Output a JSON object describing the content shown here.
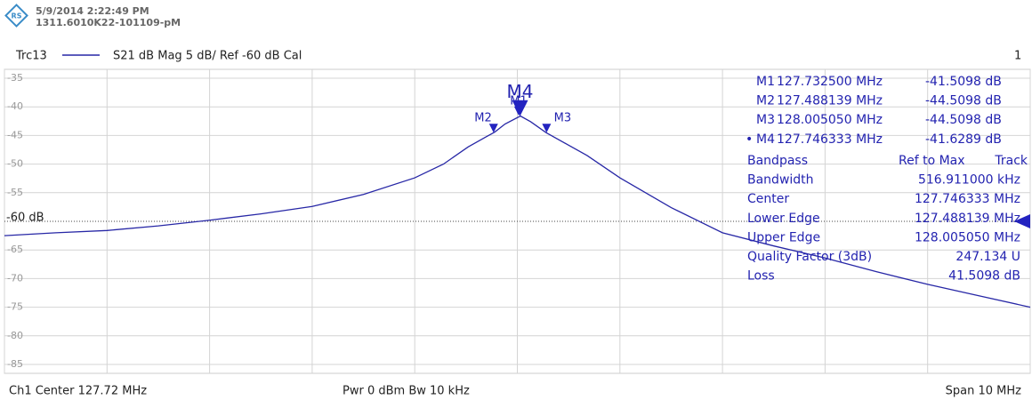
{
  "header": {
    "date": "5/9/2014 2:22:49 PM",
    "device": "1311.6010K22-101109-pM"
  },
  "trace_header": {
    "trace": "Trc13",
    "settings": "S21 dB Mag 5 dB/ Ref -60 dB Cal",
    "channel_number": "1"
  },
  "chart_data": {
    "type": "line",
    "x": [
      122.72,
      123.22,
      123.72,
      124.22,
      124.72,
      125.22,
      125.72,
      126.22,
      126.72,
      127.0,
      127.24,
      127.4,
      127.5,
      127.6,
      127.75,
      127.85,
      128.0,
      128.2,
      128.4,
      128.72,
      129.22,
      129.72,
      130.22,
      130.72,
      131.22,
      131.72,
      132.22,
      132.72
    ],
    "series": [
      {
        "name": "Trc13",
        "color": "#2727a6",
        "values": [
          -62.5,
          -62.0,
          -61.6,
          -60.8,
          -59.8,
          -58.7,
          -57.4,
          -55.3,
          -52.4,
          -50.0,
          -47.0,
          -45.4,
          -44.4,
          -43.0,
          -41.6,
          -42.6,
          -44.5,
          -46.5,
          -48.5,
          -52.4,
          -57.6,
          -62.0,
          -64.3,
          -66.4,
          -68.8,
          -71.0,
          -73.0,
          -75.0
        ]
      }
    ],
    "xlim": [
      122.72,
      132.72
    ],
    "xticks": [
      122.72,
      123.72,
      124.72,
      125.72,
      126.72,
      127.72,
      128.72,
      129.72,
      130.72,
      131.72,
      132.72
    ],
    "ylim": [
      -35,
      -85
    ],
    "yticks": [
      -35,
      -40,
      -45,
      -50,
      -55,
      -65,
      -70,
      -75,
      -80,
      -85
    ],
    "reference": {
      "value": -60,
      "label": "-60 dB"
    },
    "grid": true,
    "markers": [
      {
        "name": "M1",
        "x": 127.7325,
        "x_label": "127.732500 MHz",
        "y": -41.5098,
        "y_label": "-41.5098 dB"
      },
      {
        "name": "M2",
        "x": 127.488139,
        "x_label": "127.488139 MHz",
        "y": -44.5098,
        "y_label": "-44.5098 dB"
      },
      {
        "name": "M3",
        "x": 128.00505,
        "x_label": "128.005050 MHz",
        "y": -44.5098,
        "y_label": "-44.5098 dB"
      },
      {
        "name": "M4",
        "x": 127.746333,
        "x_label": "127.746333 MHz",
        "y": -41.6289,
        "y_label": "-41.6289 dB"
      }
    ],
    "bandpass": [
      [
        "Bandpass",
        "Ref to Max",
        "Track"
      ],
      [
        "Bandwidth",
        "516.911000 kHz"
      ],
      [
        "Center",
        "127.746333 MHz"
      ],
      [
        "Lower Edge",
        "127.488139 MHz"
      ],
      [
        "Upper Edge",
        "128.005050 MHz"
      ],
      [
        "Quality Factor (3dB)",
        "247.134 U"
      ],
      [
        "Loss",
        "41.5098 dB"
      ]
    ]
  },
  "footer": {
    "center": "Ch1  Center  127.72 MHz",
    "power": "Pwr  0 dBm  Bw  10 kHz",
    "span": "Span  10 MHz"
  }
}
